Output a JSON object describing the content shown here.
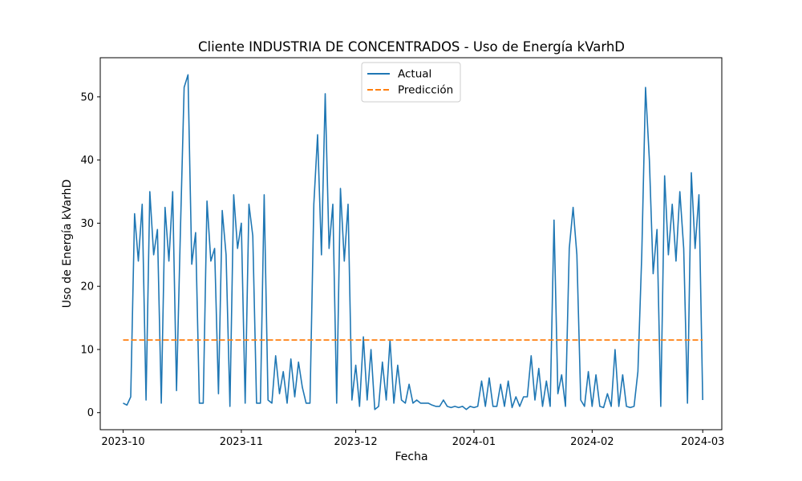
{
  "chart_data": {
    "type": "line",
    "title": "Cliente INDUSTRIA DE CONCENTRADOS - Uso de Energía kVarhD",
    "xlabel": "Fecha",
    "ylabel": "Uso de Energía kVarhD",
    "x_range": [
      "2023-09-25",
      "2024-03-06"
    ],
    "ylim": [
      -2.7,
      56.2
    ],
    "x_ticks": [
      {
        "date": "2023-10-01",
        "label": "2023-10"
      },
      {
        "date": "2023-11-01",
        "label": "2023-11"
      },
      {
        "date": "2023-12-01",
        "label": "2023-12"
      },
      {
        "date": "2024-01-01",
        "label": "2024-01"
      },
      {
        "date": "2024-02-01",
        "label": "2024-02"
      },
      {
        "date": "2024-03-01",
        "label": "2024-03"
      }
    ],
    "y_ticks": [
      0,
      10,
      20,
      30,
      40,
      50
    ],
    "grid": false,
    "legend_position": "top-center",
    "colors": {
      "actual": "#1f77b4",
      "prediction": "#ff7f0e"
    },
    "series": [
      {
        "name": "Actual",
        "style": "solid",
        "points": [
          [
            "2023-10-01",
            1.5
          ],
          [
            "2023-10-02",
            1.2
          ],
          [
            "2023-10-03",
            2.5
          ],
          [
            "2023-10-04",
            31.5
          ],
          [
            "2023-10-05",
            24.0
          ],
          [
            "2023-10-06",
            33.0
          ],
          [
            "2023-10-07",
            2.0
          ],
          [
            "2023-10-08",
            35.0
          ],
          [
            "2023-10-09",
            25.0
          ],
          [
            "2023-10-10",
            29.0
          ],
          [
            "2023-10-11",
            1.5
          ],
          [
            "2023-10-12",
            32.5
          ],
          [
            "2023-10-13",
            24.0
          ],
          [
            "2023-10-14",
            35.0
          ],
          [
            "2023-10-15",
            3.5
          ],
          [
            "2023-10-16",
            28.0
          ],
          [
            "2023-10-17",
            51.5
          ],
          [
            "2023-10-18",
            53.5
          ],
          [
            "2023-10-19",
            23.5
          ],
          [
            "2023-10-20",
            28.5
          ],
          [
            "2023-10-21",
            1.5
          ],
          [
            "2023-10-22",
            1.5
          ],
          [
            "2023-10-23",
            33.5
          ],
          [
            "2023-10-24",
            24.0
          ],
          [
            "2023-10-25",
            26.0
          ],
          [
            "2023-10-26",
            3.0
          ],
          [
            "2023-10-27",
            32.0
          ],
          [
            "2023-10-28",
            25.0
          ],
          [
            "2023-10-29",
            1.0
          ],
          [
            "2023-10-30",
            34.5
          ],
          [
            "2023-10-31",
            26.0
          ],
          [
            "2023-11-01",
            30.0
          ],
          [
            "2023-11-02",
            1.5
          ],
          [
            "2023-11-03",
            33.0
          ],
          [
            "2023-11-04",
            28.0
          ],
          [
            "2023-11-05",
            1.5
          ],
          [
            "2023-11-06",
            1.5
          ],
          [
            "2023-11-07",
            34.5
          ],
          [
            "2023-11-08",
            2.0
          ],
          [
            "2023-11-09",
            1.5
          ],
          [
            "2023-11-10",
            9.0
          ],
          [
            "2023-11-11",
            3.0
          ],
          [
            "2023-11-12",
            6.5
          ],
          [
            "2023-11-13",
            1.5
          ],
          [
            "2023-11-14",
            8.5
          ],
          [
            "2023-11-15",
            2.5
          ],
          [
            "2023-11-16",
            8.0
          ],
          [
            "2023-11-17",
            4.0
          ],
          [
            "2023-11-18",
            1.5
          ],
          [
            "2023-11-19",
            1.5
          ],
          [
            "2023-11-20",
            33.0
          ],
          [
            "2023-11-21",
            44.0
          ],
          [
            "2023-11-22",
            25.0
          ],
          [
            "2023-11-23",
            50.5
          ],
          [
            "2023-11-24",
            26.0
          ],
          [
            "2023-11-25",
            33.0
          ],
          [
            "2023-11-26",
            1.5
          ],
          [
            "2023-11-27",
            35.5
          ],
          [
            "2023-11-28",
            24.0
          ],
          [
            "2023-11-29",
            33.0
          ],
          [
            "2023-11-30",
            2.0
          ],
          [
            "2023-12-01",
            7.5
          ],
          [
            "2023-12-02",
            1.0
          ],
          [
            "2023-12-03",
            12.0
          ],
          [
            "2023-12-04",
            2.0
          ],
          [
            "2023-12-05",
            10.0
          ],
          [
            "2023-12-06",
            0.5
          ],
          [
            "2023-12-07",
            1.0
          ],
          [
            "2023-12-08",
            8.0
          ],
          [
            "2023-12-09",
            2.0
          ],
          [
            "2023-12-10",
            11.5
          ],
          [
            "2023-12-11",
            1.5
          ],
          [
            "2023-12-12",
            7.5
          ],
          [
            "2023-12-13",
            2.0
          ],
          [
            "2023-12-14",
            1.5
          ],
          [
            "2023-12-15",
            4.5
          ],
          [
            "2023-12-16",
            1.5
          ],
          [
            "2023-12-17",
            2.0
          ],
          [
            "2023-12-18",
            1.5
          ],
          [
            "2023-12-19",
            1.5
          ],
          [
            "2023-12-20",
            1.5
          ],
          [
            "2023-12-21",
            1.2
          ],
          [
            "2023-12-22",
            1.0
          ],
          [
            "2023-12-23",
            1.0
          ],
          [
            "2023-12-24",
            2.0
          ],
          [
            "2023-12-25",
            1.0
          ],
          [
            "2023-12-26",
            0.8
          ],
          [
            "2023-12-27",
            1.0
          ],
          [
            "2023-12-28",
            0.8
          ],
          [
            "2023-12-29",
            1.0
          ],
          [
            "2023-12-30",
            0.5
          ],
          [
            "2023-12-31",
            1.0
          ],
          [
            "2024-01-01",
            0.8
          ],
          [
            "2024-01-02",
            1.0
          ],
          [
            "2024-01-03",
            5.0
          ],
          [
            "2024-01-04",
            1.0
          ],
          [
            "2024-01-05",
            5.5
          ],
          [
            "2024-01-06",
            1.0
          ],
          [
            "2024-01-07",
            1.0
          ],
          [
            "2024-01-08",
            4.5
          ],
          [
            "2024-01-09",
            1.0
          ],
          [
            "2024-01-10",
            5.0
          ],
          [
            "2024-01-11",
            0.8
          ],
          [
            "2024-01-12",
            2.5
          ],
          [
            "2024-01-13",
            1.0
          ],
          [
            "2024-01-14",
            2.5
          ],
          [
            "2024-01-15",
            2.5
          ],
          [
            "2024-01-16",
            9.0
          ],
          [
            "2024-01-17",
            2.0
          ],
          [
            "2024-01-18",
            7.0
          ],
          [
            "2024-01-19",
            1.0
          ],
          [
            "2024-01-20",
            5.0
          ],
          [
            "2024-01-21",
            1.0
          ],
          [
            "2024-01-22",
            30.5
          ],
          [
            "2024-01-23",
            3.0
          ],
          [
            "2024-01-24",
            6.0
          ],
          [
            "2024-01-25",
            1.0
          ],
          [
            "2024-01-26",
            26.0
          ],
          [
            "2024-01-27",
            32.5
          ],
          [
            "2024-01-28",
            25.0
          ],
          [
            "2024-01-29",
            2.0
          ],
          [
            "2024-01-30",
            1.0
          ],
          [
            "2024-01-31",
            6.5
          ],
          [
            "2024-02-01",
            1.0
          ],
          [
            "2024-02-02",
            6.0
          ],
          [
            "2024-02-03",
            1.0
          ],
          [
            "2024-02-04",
            0.8
          ],
          [
            "2024-02-05",
            3.0
          ],
          [
            "2024-02-06",
            1.0
          ],
          [
            "2024-02-07",
            10.0
          ],
          [
            "2024-02-08",
            1.0
          ],
          [
            "2024-02-09",
            6.0
          ],
          [
            "2024-02-10",
            1.0
          ],
          [
            "2024-02-11",
            0.8
          ],
          [
            "2024-02-12",
            1.0
          ],
          [
            "2024-02-13",
            6.5
          ],
          [
            "2024-02-14",
            25.0
          ],
          [
            "2024-02-15",
            51.5
          ],
          [
            "2024-02-16",
            40.0
          ],
          [
            "2024-02-17",
            22.0
          ],
          [
            "2024-02-18",
            29.0
          ],
          [
            "2024-02-19",
            1.0
          ],
          [
            "2024-02-20",
            37.5
          ],
          [
            "2024-02-21",
            25.0
          ],
          [
            "2024-02-22",
            33.0
          ],
          [
            "2024-02-23",
            24.0
          ],
          [
            "2024-02-24",
            35.0
          ],
          [
            "2024-02-25",
            26.0
          ],
          [
            "2024-02-26",
            1.5
          ],
          [
            "2024-02-27",
            38.0
          ],
          [
            "2024-02-28",
            26.0
          ],
          [
            "2024-02-29",
            34.5
          ],
          [
            "2024-03-01",
            2.0
          ]
        ]
      },
      {
        "name": "Predicción",
        "style": "dashed",
        "points": [
          [
            "2023-10-01",
            11.5
          ],
          [
            "2024-03-01",
            11.5
          ]
        ]
      }
    ]
  }
}
